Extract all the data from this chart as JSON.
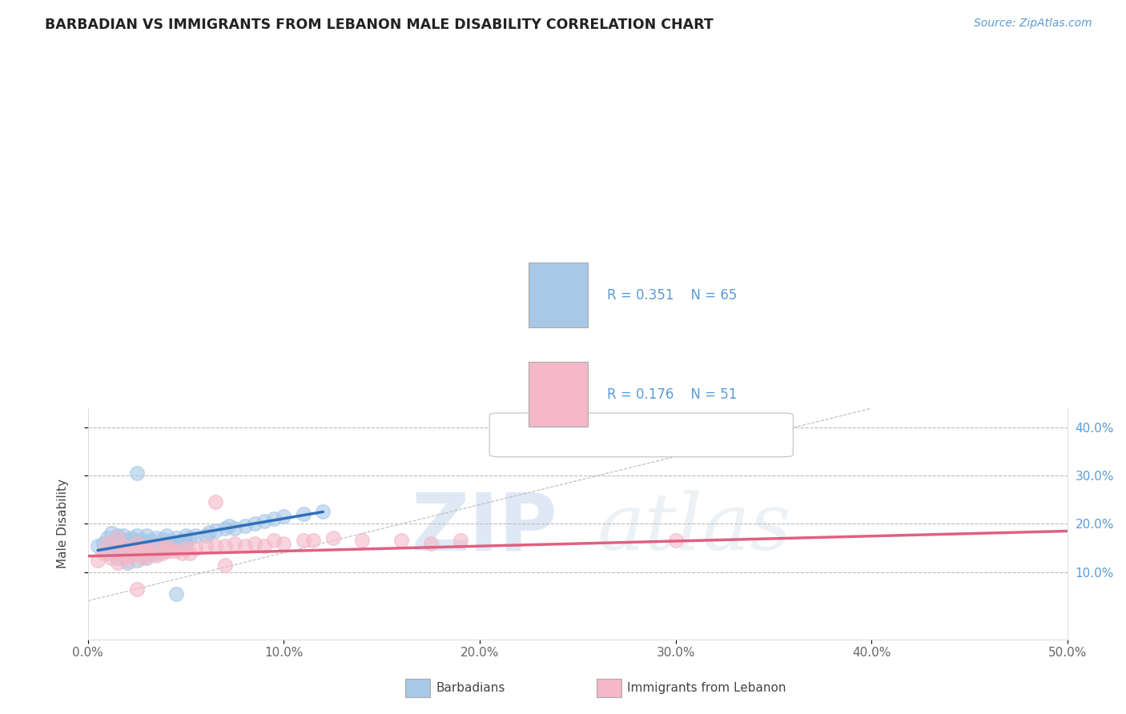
{
  "title": "BARBADIAN VS IMMIGRANTS FROM LEBANON MALE DISABILITY CORRELATION CHART",
  "source": "Source: ZipAtlas.com",
  "ylabel": "Male Disability",
  "legend_labels": [
    "Barbadians",
    "Immigrants from Lebanon"
  ],
  "legend_r": [
    "R = 0.351",
    "N = 65"
  ],
  "legend_r2": [
    "R = 0.176",
    "N = 51"
  ],
  "xlim": [
    0,
    0.5
  ],
  "ylim": [
    -0.04,
    0.44
  ],
  "xticks": [
    0.0,
    0.1,
    0.2,
    0.3,
    0.4,
    0.5
  ],
  "yticks": [
    0.1,
    0.2,
    0.3,
    0.4
  ],
  "color_blue": "#a8c8e8",
  "color_pink": "#f4b8c8",
  "line_blue": "#3070b8",
  "line_pink": "#e06080",
  "blue_scatter_x": [
    0.005,
    0.008,
    0.01,
    0.01,
    0.012,
    0.012,
    0.015,
    0.015,
    0.015,
    0.015,
    0.017,
    0.018,
    0.018,
    0.02,
    0.02,
    0.02,
    0.02,
    0.022,
    0.022,
    0.022,
    0.025,
    0.025,
    0.025,
    0.025,
    0.025,
    0.028,
    0.028,
    0.028,
    0.03,
    0.03,
    0.03,
    0.03,
    0.032,
    0.032,
    0.035,
    0.035,
    0.035,
    0.038,
    0.038,
    0.04,
    0.04,
    0.04,
    0.042,
    0.045,
    0.045,
    0.048,
    0.05,
    0.05,
    0.052,
    0.055,
    0.06,
    0.062,
    0.065,
    0.07,
    0.072,
    0.075,
    0.08,
    0.085,
    0.09,
    0.095,
    0.1,
    0.11,
    0.12,
    0.025,
    0.045
  ],
  "blue_scatter_y": [
    0.155,
    0.16,
    0.14,
    0.17,
    0.15,
    0.18,
    0.13,
    0.155,
    0.165,
    0.175,
    0.145,
    0.16,
    0.175,
    0.12,
    0.135,
    0.15,
    0.165,
    0.145,
    0.155,
    0.17,
    0.125,
    0.14,
    0.155,
    0.165,
    0.175,
    0.14,
    0.155,
    0.165,
    0.13,
    0.145,
    0.16,
    0.175,
    0.15,
    0.165,
    0.14,
    0.155,
    0.17,
    0.155,
    0.168,
    0.145,
    0.16,
    0.175,
    0.165,
    0.155,
    0.17,
    0.165,
    0.16,
    0.175,
    0.17,
    0.175,
    0.175,
    0.182,
    0.185,
    0.19,
    0.195,
    0.19,
    0.195,
    0.2,
    0.205,
    0.21,
    0.215,
    0.22,
    0.225,
    0.305,
    0.055
  ],
  "pink_scatter_x": [
    0.005,
    0.008,
    0.01,
    0.012,
    0.015,
    0.015,
    0.015,
    0.018,
    0.018,
    0.02,
    0.02,
    0.022,
    0.022,
    0.025,
    0.025,
    0.028,
    0.028,
    0.03,
    0.03,
    0.032,
    0.035,
    0.035,
    0.038,
    0.04,
    0.04,
    0.042,
    0.045,
    0.048,
    0.05,
    0.052,
    0.055,
    0.06,
    0.065,
    0.07,
    0.075,
    0.08,
    0.085,
    0.09,
    0.095,
    0.1,
    0.11,
    0.115,
    0.125,
    0.14,
    0.16,
    0.175,
    0.19,
    0.3,
    0.065,
    0.07,
    0.025
  ],
  "pink_scatter_y": [
    0.125,
    0.14,
    0.16,
    0.13,
    0.12,
    0.14,
    0.17,
    0.135,
    0.155,
    0.125,
    0.145,
    0.135,
    0.15,
    0.14,
    0.16,
    0.13,
    0.145,
    0.135,
    0.15,
    0.14,
    0.135,
    0.155,
    0.14,
    0.145,
    0.155,
    0.145,
    0.145,
    0.14,
    0.15,
    0.14,
    0.15,
    0.155,
    0.155,
    0.155,
    0.16,
    0.155,
    0.16,
    0.155,
    0.165,
    0.16,
    0.165,
    0.165,
    0.17,
    0.165,
    0.165,
    0.16,
    0.165,
    0.165,
    0.245,
    0.115,
    0.065
  ],
  "blue_line_x": [
    0.005,
    0.12
  ],
  "blue_line_y": [
    0.145,
    0.225
  ],
  "pink_line_x": [
    0.0,
    0.5
  ],
  "pink_line_y": [
    0.133,
    0.185
  ],
  "diag_line_x": [
    0.0,
    0.4
  ],
  "diag_line_y": [
    0.04,
    0.44
  ],
  "hline_y": [
    0.1,
    0.2,
    0.3,
    0.4
  ],
  "watermark_zip": "ZIP",
  "watermark_atlas": "atlas",
  "figsize": [
    14.06,
    8.92
  ],
  "dpi": 100,
  "background_color": "#ffffff"
}
